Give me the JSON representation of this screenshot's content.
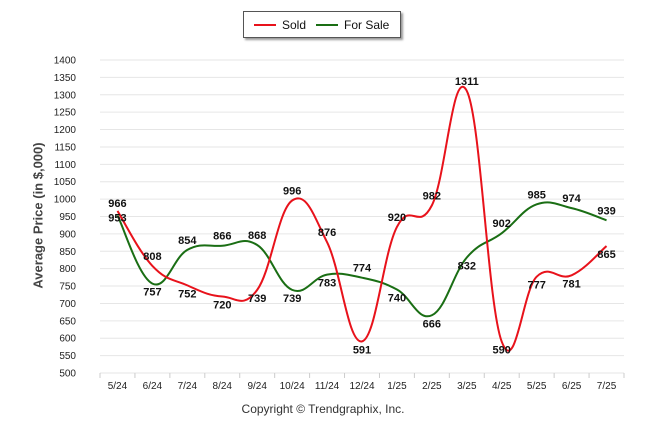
{
  "chart_data": {
    "type": "line",
    "ylabel": "Average Price (in $,000)",
    "xlabel": "",
    "categories": [
      "5/24",
      "6/24",
      "7/24",
      "8/24",
      "9/24",
      "10/24",
      "11/24",
      "12/24",
      "1/25",
      "2/25",
      "3/25",
      "4/25",
      "5/25",
      "6/25",
      "7/25"
    ],
    "ylim": [
      500,
      1400
    ],
    "yticks": [
      500,
      550,
      600,
      650,
      700,
      750,
      800,
      850,
      900,
      950,
      1000,
      1050,
      1100,
      1150,
      1200,
      1250,
      1300,
      1350,
      1400
    ],
    "legend_position": "top-center",
    "grid": true,
    "series": [
      {
        "name": "Sold",
        "color": "#e8121b",
        "values": [
          966,
          808,
          752,
          720,
          739,
          996,
          876,
          591,
          920,
          982,
          1311,
          590,
          777,
          781,
          865
        ]
      },
      {
        "name": "For Sale",
        "color": "#1a6e14",
        "values": [
          953,
          757,
          854,
          866,
          868,
          739,
          783,
          774,
          740,
          666,
          832,
          902,
          985,
          974,
          939
        ]
      }
    ],
    "footer": "Copyright © Trendgraphix, Inc."
  }
}
